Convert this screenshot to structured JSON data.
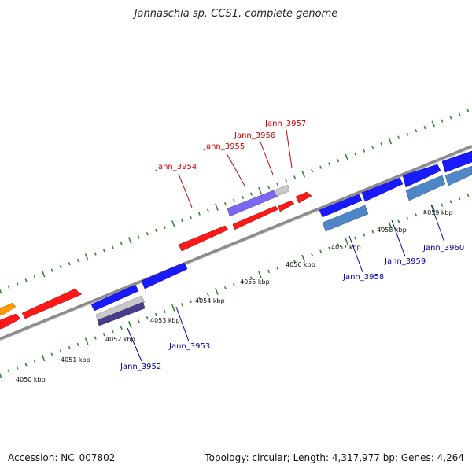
{
  "title": "Jannaschia sp. CCS1, complete genome",
  "footer": {
    "accession": "Accession: NC_007802",
    "info": "Topology: circular; Length: 4,317,977 bp; Genes: 4,264"
  },
  "colors": {
    "backbone": "#7a7a7a",
    "tick": "#2e8b2e",
    "forward_gene": "#ff1a1a",
    "reverse_gene": "#1a1aff",
    "forward_label": "#cc0000",
    "reverse_label": "#0000aa",
    "orange_gene": "#ff9900",
    "purple_gene": "#7b68ee",
    "steel_gene": "#4f86c6",
    "dark_purple_gene": "#483d8b",
    "gray_gene": "#c8c8c8"
  },
  "kbp_labels": [
    "4050 kbp",
    "4051 kbp",
    "4052 kbp",
    "4053 kbp",
    "4054 kbp",
    "4055 kbp",
    "4056 kbp",
    "4057 kbp",
    "4058 kbp",
    "4059 kbp"
  ],
  "forward_labels": [
    "Jann_3954",
    "Jann_3955",
    "Jann_3956",
    "Jann_3957"
  ],
  "reverse_labels": [
    "Jann_3952",
    "Jann_3953",
    "Jann_3958",
    "Jann_3959",
    "Jann_3960"
  ]
}
